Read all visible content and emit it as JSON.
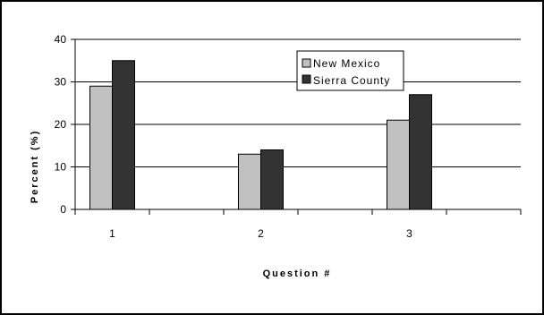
{
  "chart_data": {
    "type": "bar",
    "title": "",
    "xlabel": "Question #",
    "ylabel": "Percent (%)",
    "categories": [
      "1",
      "2",
      "3"
    ],
    "yticks": [
      "0",
      "10",
      "20",
      "30",
      "40"
    ],
    "ylim": [
      0,
      40
    ],
    "grid": true,
    "legend_position": "top-right",
    "series": [
      {
        "name": "New Mexico",
        "values": [
          29,
          13,
          21
        ],
        "color": "#c0c0c0"
      },
      {
        "name": "Sierra County",
        "values": [
          35,
          14,
          27
        ],
        "color": "#333333"
      }
    ]
  }
}
